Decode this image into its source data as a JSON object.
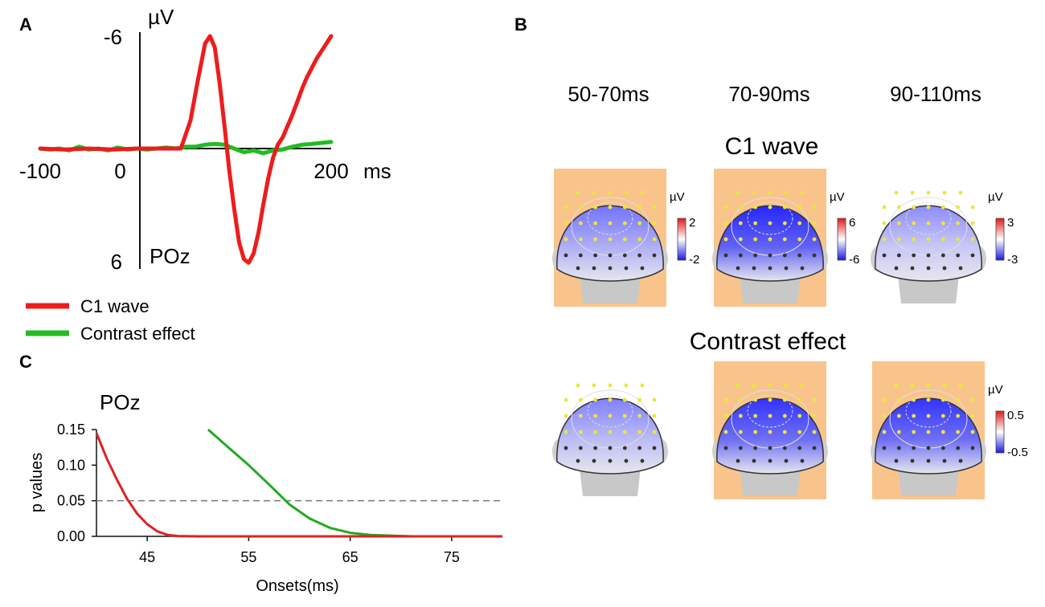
{
  "panels": {
    "a_label": "A",
    "b_label": "B",
    "c_label": "C"
  },
  "chart_data": [
    {
      "id": "A",
      "type": "line",
      "title": "",
      "channel": "POz",
      "xlabel": "ms",
      "ylabel": "µV",
      "xlim": [
        -100,
        200
      ],
      "ylim": [
        -6,
        6
      ],
      "y_inverted": true,
      "xticks": [
        {
          "value": -100,
          "label": "-100"
        },
        {
          "value": 0,
          "label": "0"
        },
        {
          "value": 200,
          "label": "200"
        }
      ],
      "yticks": [
        {
          "value": -6,
          "label": "-6"
        },
        {
          "value": 6,
          "label": "6"
        }
      ],
      "series": [
        {
          "name": "C1 wave",
          "color": "#ee1c1c",
          "x": [
            -100,
            -75,
            -50,
            -25,
            0,
            20,
            40,
            45,
            55,
            62,
            70,
            75,
            80,
            85,
            90,
            95,
            100,
            105,
            110,
            115,
            120,
            125,
            130,
            135,
            140,
            145,
            150,
            155,
            160,
            165,
            170,
            175,
            180,
            185,
            190,
            195,
            200
          ],
          "y": [
            0,
            0.05,
            0,
            0.05,
            0,
            0,
            0,
            0,
            -1.5,
            -3.5,
            -5.6,
            -6.0,
            -5.4,
            -3.5,
            -1.2,
            1.2,
            3.2,
            5.0,
            5.9,
            6.1,
            5.6,
            4.5,
            3.0,
            1.6,
            0.5,
            -0.2,
            -0.6,
            -1.2,
            -1.8,
            -2.5,
            -3.2,
            -3.8,
            -4.3,
            -4.8,
            -5.2,
            -5.6,
            -6.0
          ]
        },
        {
          "name": "Contrast effect",
          "color": "#22bb22",
          "x": [
            -100,
            -90,
            -80,
            -70,
            -60,
            -50,
            -40,
            -30,
            -20,
            -10,
            0,
            10,
            20,
            30,
            40,
            50,
            60,
            70,
            80,
            90,
            100,
            110,
            120,
            130,
            140,
            150,
            160,
            170,
            180,
            190,
            200
          ],
          "y": [
            0,
            0.05,
            0,
            0.1,
            -0.1,
            0.05,
            0,
            0.1,
            -0.05,
            0.05,
            0,
            0.05,
            0,
            -0.05,
            0,
            -0.1,
            -0.1,
            -0.2,
            -0.25,
            -0.2,
            0,
            0.2,
            0.1,
            0.25,
            0.1,
            0.05,
            -0.1,
            -0.2,
            -0.25,
            -0.3,
            -0.35
          ]
        }
      ],
      "legend": [
        "C1 wave",
        "Contrast effect"
      ],
      "legend_position": "bottom-left"
    },
    {
      "id": "C",
      "type": "line",
      "title": "POz",
      "xlabel": "Onsets(ms)",
      "ylabel": "p values",
      "xlim": [
        40,
        80
      ],
      "ylim": [
        0,
        0.15
      ],
      "xticks": [
        45,
        55,
        65,
        75
      ],
      "yticks": [
        "0.00",
        "0.05",
        "0.10",
        "0.15"
      ],
      "threshold": 0.05,
      "series": [
        {
          "name": "C1 wave",
          "color": "#dd2222",
          "x": [
            40,
            41,
            42,
            43,
            44,
            45,
            46,
            47,
            48,
            50,
            55,
            60,
            70,
            80
          ],
          "y": [
            0.145,
            0.11,
            0.08,
            0.053,
            0.032,
            0.017,
            0.007,
            0.002,
            0.0005,
            0,
            0,
            0,
            0,
            0
          ]
        },
        {
          "name": "Contrast effect",
          "color": "#22aa22",
          "x": [
            51,
            53,
            55,
            57,
            59,
            61,
            63,
            65,
            67,
            69,
            71,
            75,
            80
          ],
          "y": [
            0.15,
            0.125,
            0.1,
            0.073,
            0.045,
            0.025,
            0.012,
            0.005,
            0.002,
            0.001,
            0,
            0,
            0
          ]
        }
      ]
    }
  ],
  "topomaps": {
    "time_windows": [
      "50-70ms",
      "70-90ms",
      "90-110ms"
    ],
    "rows": [
      {
        "title": "C1 wave",
        "unit": "µV",
        "cells": [
          {
            "highlight": true,
            "scale_max": "2",
            "scale_min": "-2",
            "intensity": 0.55
          },
          {
            "highlight": true,
            "scale_max": "6",
            "scale_min": "-6",
            "intensity": 0.85
          },
          {
            "highlight": false,
            "scale_max": "3",
            "scale_min": "-3",
            "intensity": 0.45
          }
        ]
      },
      {
        "title": "Contrast effect",
        "unit": "µV",
        "cells": [
          {
            "highlight": false,
            "intensity": 0.5
          },
          {
            "highlight": true,
            "intensity": 0.8
          },
          {
            "highlight": true,
            "scale_max": "0.5",
            "scale_min": "-0.5",
            "intensity": 0.8
          }
        ]
      }
    ]
  }
}
